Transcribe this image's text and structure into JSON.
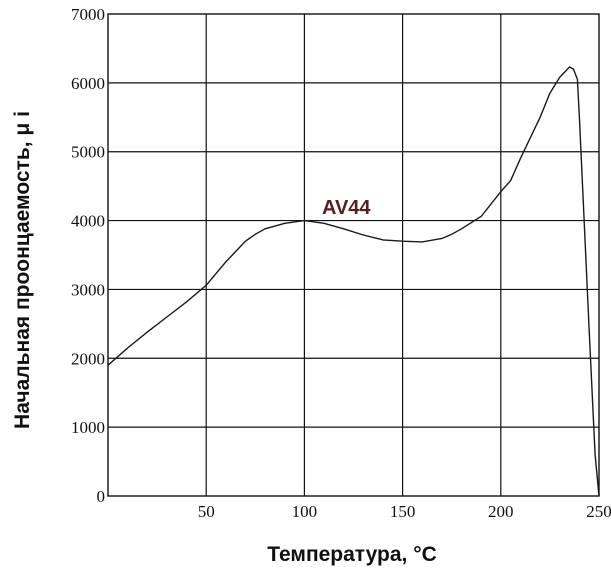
{
  "chart_data": {
    "type": "line",
    "xlabel": "Температура, °C",
    "ylabel": "Начальная проонцаемость, μ i",
    "xlim": [
      0,
      250
    ],
    "ylim": [
      0,
      7000
    ],
    "x_ticks": [
      "50",
      "100",
      "150",
      "200",
      "250"
    ],
    "y_ticks": [
      "0",
      "1000",
      "2000",
      "3000",
      "4000",
      "5000",
      "6000",
      "7000"
    ],
    "grid": true,
    "annotation": "AV44",
    "series": [
      {
        "name": "AV44",
        "points": [
          [
            0,
            1900
          ],
          [
            10,
            2150
          ],
          [
            20,
            2380
          ],
          [
            30,
            2600
          ],
          [
            40,
            2820
          ],
          [
            50,
            3060
          ],
          [
            60,
            3400
          ],
          [
            70,
            3700
          ],
          [
            75,
            3800
          ],
          [
            80,
            3880
          ],
          [
            90,
            3960
          ],
          [
            100,
            4000
          ],
          [
            110,
            3960
          ],
          [
            120,
            3880
          ],
          [
            130,
            3790
          ],
          [
            140,
            3720
          ],
          [
            150,
            3700
          ],
          [
            160,
            3690
          ],
          [
            170,
            3740
          ],
          [
            175,
            3800
          ],
          [
            180,
            3880
          ],
          [
            190,
            4060
          ],
          [
            200,
            4420
          ],
          [
            205,
            4580
          ],
          [
            210,
            4900
          ],
          [
            220,
            5500
          ],
          [
            225,
            5850
          ],
          [
            230,
            6080
          ],
          [
            235,
            6230
          ],
          [
            237,
            6200
          ],
          [
            239,
            6050
          ],
          [
            240,
            5500
          ],
          [
            245,
            2400
          ],
          [
            248,
            600
          ],
          [
            250,
            0
          ]
        ]
      }
    ]
  }
}
